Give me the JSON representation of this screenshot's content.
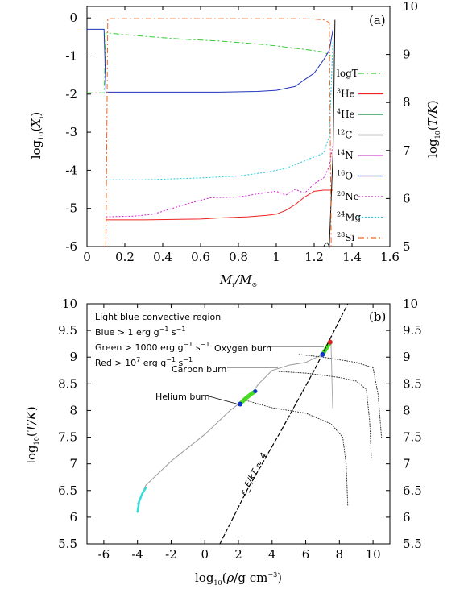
{
  "chart_data": [
    {
      "type": "line",
      "panel_label": "(a)",
      "xlabel": "M_r/M_⊙",
      "ylabel_left": "log_10(X_i)",
      "ylabel_right": "log_10(T/K)",
      "xlim": [
        0,
        1.6
      ],
      "ylim_left": [
        -6,
        0.3
      ],
      "ylim_right": [
        5,
        10
      ],
      "xticks": [
        "0",
        "0.2",
        "0.4",
        "0.6",
        "0.8",
        "1",
        "1.2",
        "1.4",
        "1.6"
      ],
      "yticks_left": [
        "0",
        "-1",
        "-2",
        "-3",
        "-4",
        "-5",
        "-6"
      ],
      "yticks_right": [
        "10",
        "9",
        "8",
        "7",
        "6",
        "5"
      ],
      "legend": [
        {
          "label": "logT",
          "color": "#33cc33",
          "dash": "dashdot"
        },
        {
          "label": "3He",
          "mass": "3",
          "el": "He",
          "color": "#ee2222",
          "dash": "solid"
        },
        {
          "label": "4He",
          "mass": "4",
          "el": "He",
          "color": "#118844",
          "dash": "solid"
        },
        {
          "label": "12C",
          "mass": "12",
          "el": "C",
          "color": "#111111",
          "dash": "solid"
        },
        {
          "label": "14N",
          "mass": "14",
          "el": "N",
          "color": "#cc55cc",
          "dash": "solid"
        },
        {
          "label": "16O",
          "mass": "16",
          "el": "O",
          "color": "#2233bb",
          "dash": "solid"
        },
        {
          "label": "20Ne",
          "mass": "20",
          "el": "Ne",
          "color": "#cc22cc",
          "dash": "dotted"
        },
        {
          "label": "24Mg",
          "mass": "24",
          "el": "Mg",
          "color": "#22ccdd",
          "dash": "dotted"
        },
        {
          "label": "28Si",
          "mass": "28",
          "el": "Si",
          "color": "#ee6622",
          "dash": "dashdot"
        }
      ],
      "series": [
        {
          "name": "logT",
          "axis": "right",
          "x": [
            0,
            0.09,
            0.1,
            0.3,
            0.5,
            0.7,
            0.9,
            1.0,
            1.1,
            1.2,
            1.25,
            1.3
          ],
          "y": [
            8.2,
            8.2,
            9.45,
            9.38,
            9.32,
            9.28,
            9.22,
            9.18,
            9.13,
            9.08,
            9.05,
            8.95
          ]
        },
        {
          "name": "3He",
          "axis": "left",
          "x": [
            0.1,
            0.3,
            0.6,
            0.7,
            0.85,
            0.95,
            1.0,
            1.05,
            1.1,
            1.15,
            1.2,
            1.25,
            1.3
          ],
          "y": [
            -5.3,
            -5.3,
            -5.28,
            -5.25,
            -5.22,
            -5.18,
            -5.15,
            -5.05,
            -4.9,
            -4.7,
            -4.55,
            -4.52,
            -4.52
          ]
        },
        {
          "name": "12C",
          "axis": "left",
          "x": [
            1.25,
            1.26,
            1.27,
            1.28,
            1.3,
            1.31
          ],
          "y": [
            -6,
            -5.92,
            -5.9,
            -6,
            -3.5,
            -0.05
          ]
        },
        {
          "name": "16O",
          "axis": "left",
          "x": [
            0,
            0.09,
            0.1,
            0.4,
            0.7,
            0.9,
            1.0,
            1.1,
            1.15,
            1.2,
            1.25,
            1.28,
            1.3
          ],
          "y": [
            -0.3,
            -0.3,
            -1.95,
            -1.95,
            -1.95,
            -1.93,
            -1.9,
            -1.8,
            -1.62,
            -1.45,
            -1.1,
            -0.85,
            -0.3
          ]
        },
        {
          "name": "20Ne",
          "axis": "left",
          "x": [
            0.1,
            0.25,
            0.35,
            0.45,
            0.55,
            0.65,
            0.8,
            0.9,
            1.0,
            1.05,
            1.1,
            1.15,
            1.2,
            1.25,
            1.28,
            1.3
          ],
          "y": [
            -5.22,
            -5.2,
            -5.15,
            -5.0,
            -4.85,
            -4.72,
            -4.7,
            -4.62,
            -4.55,
            -4.65,
            -4.5,
            -4.6,
            -4.35,
            -4.2,
            -3.9,
            -3.3
          ]
        },
        {
          "name": "24Mg",
          "axis": "left",
          "x": [
            0.1,
            0.3,
            0.6,
            0.8,
            0.95,
            1.05,
            1.1,
            1.15,
            1.2,
            1.25,
            1.28,
            1.3
          ],
          "y": [
            -4.25,
            -4.25,
            -4.2,
            -4.15,
            -4.05,
            -3.95,
            -3.85,
            -3.75,
            -3.65,
            -3.55,
            -3.1,
            -0.5
          ]
        },
        {
          "name": "28Si",
          "axis": "left",
          "x": [
            0.1,
            0.11,
            0.3,
            0.6,
            0.9,
            1.1,
            1.2,
            1.25,
            1.28,
            1.29
          ],
          "y": [
            -6,
            -0.02,
            -0.02,
            -0.02,
            -0.02,
            -0.02,
            -0.03,
            -0.05,
            -0.12,
            -6
          ]
        }
      ]
    },
    {
      "type": "line",
      "panel_label": "(b)",
      "xlabel": "log_10(ρ/g cm^-3)",
      "ylabel": "log_10(T/K)",
      "xlim": [
        -7,
        11
      ],
      "ylim": [
        5.5,
        10
      ],
      "xticks": [
        "-6",
        "-4",
        "-2",
        "0",
        "2",
        "4",
        "6",
        "8",
        "10"
      ],
      "yticks": [
        "10",
        "9.5",
        "9",
        "8.5",
        "8",
        "7.5",
        "7",
        "6.5",
        "6",
        "5.5"
      ],
      "annotations": {
        "convective": "Light blue convective region",
        "blue": "Blue > 1 erg g^-1 s^-1",
        "green": "Green > 1000 erg g^-1 s^-1",
        "red": "Red > 10^7 erg g^-1 s^-1",
        "oxygen": "Oxygen burn",
        "carbon": "Carbon burn",
        "helium": "Helium burn",
        "degeneracy": "ε_F/kT ≈ 4"
      },
      "series": [
        {
          "name": "track",
          "x": [
            -4,
            -3.5,
            -2,
            0,
            1.5,
            2,
            2.3,
            2.8,
            3.2,
            4,
            5,
            6,
            7,
            7.3,
            7.5
          ],
          "y": [
            6.25,
            6.6,
            7.05,
            7.55,
            8.0,
            8.12,
            8.22,
            8.32,
            8.5,
            8.75,
            8.85,
            8.9,
            9.05,
            9.15,
            9.3
          ]
        },
        {
          "name": "convective",
          "x": [
            -4,
            -3.9,
            -3.7,
            -3.5
          ],
          "y": [
            6.1,
            6.3,
            6.45,
            6.55
          ]
        },
        {
          "name": "final",
          "x": [
            7.5,
            7.6
          ],
          "y": [
            9.3,
            8.05
          ]
        },
        {
          "name": "he-burn",
          "x": [
            2.1,
            2.4,
            2.8,
            3.0
          ],
          "y": [
            8.12,
            8.22,
            8.32,
            8.36
          ]
        },
        {
          "name": "o-burn",
          "x": [
            7.0,
            7.2,
            7.45
          ],
          "y": [
            9.05,
            9.15,
            9.28
          ]
        },
        {
          "name": "degeneracy",
          "x": [
            0.9,
            2.5,
            4.5,
            6.5,
            8.5
          ],
          "y": [
            5.5,
            6.5,
            7.6,
            8.75,
            10
          ]
        },
        {
          "name": "oxygen-burn-line",
          "x": [
            5.6,
            7,
            9,
            10,
            10.3,
            10.5
          ],
          "y": [
            9.05,
            9.0,
            8.9,
            8.8,
            8.3,
            7.5
          ]
        },
        {
          "name": "carbon-burn-line",
          "x": [
            4.4,
            6,
            8,
            9,
            9.6,
            9.8,
            9.9
          ],
          "y": [
            8.73,
            8.7,
            8.62,
            8.55,
            8.4,
            7.8,
            7.1
          ]
        },
        {
          "name": "helium-burn-line",
          "x": [
            2.3,
            4,
            6,
            7.5,
            8.2,
            8.4,
            8.5
          ],
          "y": [
            8.2,
            8.05,
            7.95,
            7.75,
            7.5,
            7.0,
            6.2
          ]
        }
      ]
    }
  ]
}
